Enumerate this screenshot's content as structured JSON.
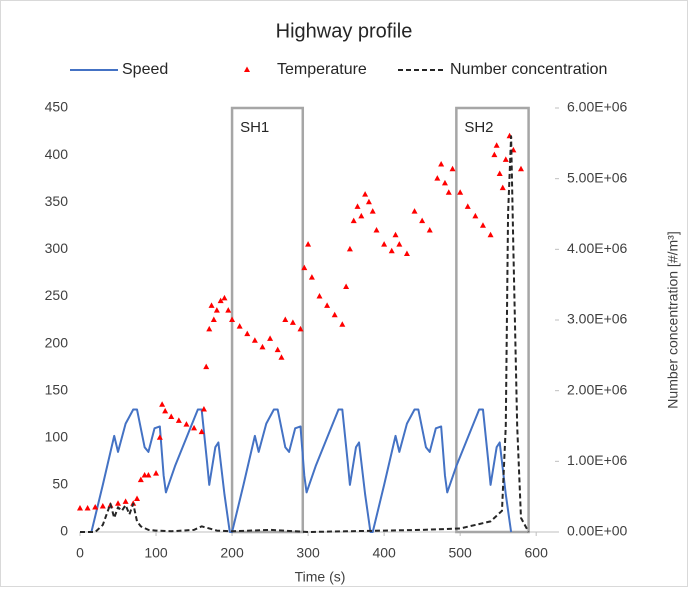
{
  "chart_data": {
    "type": "line",
    "title": "Highway profile",
    "xlabel": "Time (s)",
    "y2label": "Number concentration [#/m³]",
    "xlim": [
      0,
      630
    ],
    "xticks": [
      0,
      100,
      200,
      300,
      400,
      500,
      600
    ],
    "ylim": [
      0,
      450
    ],
    "yticks": [
      0,
      50,
      100,
      150,
      200,
      250,
      300,
      350,
      400,
      450
    ],
    "y2lim": [
      0,
      6000000
    ],
    "y2ticks": [
      {
        "value": 0,
        "label": "0.00E+00"
      },
      {
        "value": 1000000,
        "label": "1.00E+06"
      },
      {
        "value": 2000000,
        "label": "2.00E+06"
      },
      {
        "value": 3000000,
        "label": "3.00E+06"
      },
      {
        "value": 4000000,
        "label": "4.00E+06"
      },
      {
        "value": 5000000,
        "label": "5.00E+06"
      },
      {
        "value": 6000000,
        "label": "6.00E+06"
      }
    ],
    "grid": false,
    "regions": [
      {
        "label": "SH1",
        "x": [
          200,
          293
        ]
      },
      {
        "label": "SH2",
        "x": [
          495,
          590
        ]
      }
    ],
    "series": [
      {
        "name": "Speed",
        "color": "#4472c4",
        "style": "line",
        "x": [
          15,
          30,
          45,
          50,
          60,
          70,
          75,
          85,
          90,
          98,
          105,
          110,
          113,
          125,
          140,
          155,
          160,
          167,
          170,
          178,
          182,
          190,
          197,
          200,
          215,
          230,
          235,
          245,
          255,
          260,
          270,
          275,
          283,
          290,
          295,
          298,
          310,
          325,
          340,
          345,
          352,
          355,
          363,
          367,
          375,
          382,
          385,
          400,
          415,
          420,
          430,
          440,
          445,
          455,
          460,
          468,
          475,
          480,
          483,
          495,
          510,
          525,
          530,
          537,
          540,
          548,
          552,
          560,
          567
        ],
        "values": [
          0,
          50,
          102,
          85,
          115,
          130,
          130,
          90,
          85,
          110,
          112,
          60,
          42,
          70,
          100,
          130,
          130,
          75,
          50,
          90,
          95,
          40,
          0,
          0,
          50,
          102,
          85,
          115,
          130,
          130,
          90,
          85,
          110,
          112,
          60,
          42,
          70,
          100,
          130,
          130,
          75,
          50,
          90,
          95,
          40,
          0,
          0,
          50,
          102,
          85,
          115,
          130,
          130,
          90,
          85,
          110,
          112,
          60,
          42,
          70,
          100,
          130,
          130,
          75,
          50,
          90,
          95,
          40,
          0
        ]
      },
      {
        "name": "Temperature",
        "color": "#ff0000",
        "style": "triangle",
        "x": [
          0,
          10,
          20,
          30,
          40,
          50,
          60,
          70,
          75,
          80,
          85,
          90,
          100,
          105,
          108,
          112,
          120,
          130,
          140,
          150,
          160,
          163,
          166,
          170,
          173,
          176,
          180,
          185,
          190,
          195,
          200,
          210,
          220,
          230,
          240,
          250,
          260,
          265,
          270,
          280,
          290,
          295,
          300,
          305,
          315,
          325,
          335,
          345,
          350,
          355,
          360,
          365,
          370,
          375,
          380,
          385,
          390,
          400,
          410,
          415,
          420,
          430,
          440,
          450,
          460,
          470,
          475,
          480,
          485,
          490,
          500,
          510,
          520,
          530,
          540,
          545,
          548,
          552,
          556,
          560,
          565,
          570,
          580
        ],
        "values": [
          25,
          25,
          26,
          27,
          28,
          30,
          32,
          30,
          35,
          55,
          60,
          60,
          62,
          100,
          135,
          128,
          122,
          118,
          114,
          110,
          106,
          130,
          175,
          215,
          240,
          225,
          235,
          245,
          248,
          235,
          225,
          218,
          210,
          203,
          196,
          205,
          193,
          185,
          225,
          222,
          215,
          280,
          305,
          270,
          250,
          240,
          230,
          220,
          260,
          300,
          330,
          345,
          335,
          358,
          350,
          340,
          320,
          305,
          298,
          315,
          305,
          295,
          340,
          330,
          320,
          375,
          390,
          370,
          360,
          385,
          360,
          345,
          335,
          325,
          315,
          400,
          410,
          380,
          365,
          395,
          420,
          405,
          385
        ]
      },
      {
        "name": "Number concentration",
        "color": "#262626",
        "style": "dashed",
        "axis": "y2",
        "x": [
          0,
          20,
          30,
          40,
          45,
          50,
          55,
          60,
          65,
          70,
          75,
          80,
          90,
          100,
          120,
          150,
          160,
          170,
          180,
          200,
          250,
          300,
          350,
          400,
          450,
          500,
          520,
          540,
          555,
          560,
          563,
          567,
          570,
          575,
          580,
          590
        ],
        "values": [
          0,
          0,
          100000,
          400000,
          200000,
          350000,
          300000,
          380000,
          250000,
          400000,
          150000,
          80000,
          30000,
          20000,
          10000,
          30000,
          80000,
          50000,
          20000,
          10000,
          30000,
          0,
          10000,
          20000,
          30000,
          50000,
          100000,
          150000,
          300000,
          1500000,
          4500000,
          5600000,
          4000000,
          1500000,
          200000,
          0
        ]
      }
    ]
  }
}
